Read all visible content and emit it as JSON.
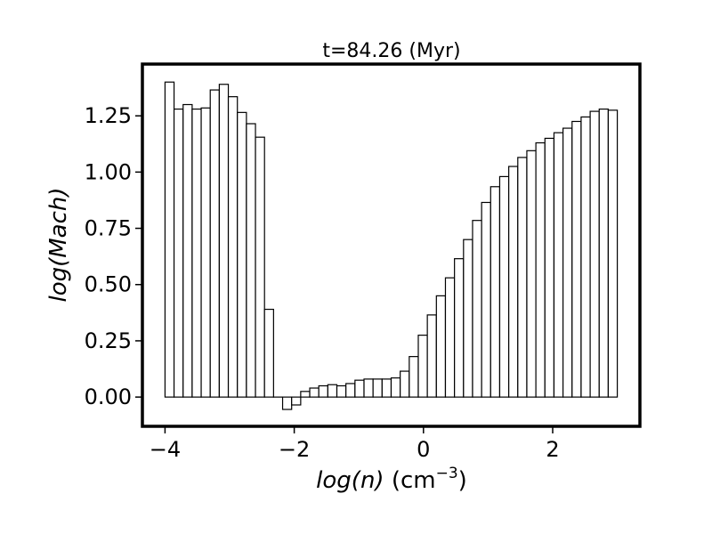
{
  "chart_data": {
    "type": "bar",
    "title": "t=84.26 (Myr)",
    "xlabel": {
      "italic": "log(n)",
      "unit_base": " (cm",
      "unit_exp": "−3",
      "unit_close": ")"
    },
    "ylabel": "log(Mach)",
    "xlim": [
      -4.35,
      3.35
    ],
    "ylim": [
      -0.13,
      1.48
    ],
    "xticks": [
      {
        "value": -4,
        "label": "−4"
      },
      {
        "value": -2,
        "label": "−2"
      },
      {
        "value": 0,
        "label": "0"
      },
      {
        "value": 2,
        "label": "2"
      }
    ],
    "yticks": [
      {
        "value": 0.0,
        "label": "0.00"
      },
      {
        "value": 0.25,
        "label": "0.25"
      },
      {
        "value": 0.5,
        "label": "0.50"
      },
      {
        "value": 0.75,
        "label": "0.75"
      },
      {
        "value": 1.0,
        "label": "1.00"
      },
      {
        "value": 1.25,
        "label": "1.25"
      }
    ],
    "grid": false,
    "bin_start": -4.0,
    "bin_width": 0.14,
    "values": [
      1.4,
      1.28,
      1.3,
      1.28,
      1.285,
      1.365,
      1.39,
      1.335,
      1.265,
      1.215,
      1.155,
      0.39,
      0.0,
      -0.055,
      -0.035,
      0.025,
      0.04,
      0.05,
      0.055,
      0.05,
      0.06,
      0.075,
      0.08,
      0.08,
      0.08,
      0.085,
      0.115,
      0.18,
      0.275,
      0.365,
      0.45,
      0.53,
      0.615,
      0.7,
      0.785,
      0.865,
      0.935,
      0.98,
      1.025,
      1.065,
      1.095,
      1.13,
      1.15,
      1.175,
      1.195,
      1.225,
      1.245,
      1.27,
      1.28,
      1.275
    ]
  }
}
